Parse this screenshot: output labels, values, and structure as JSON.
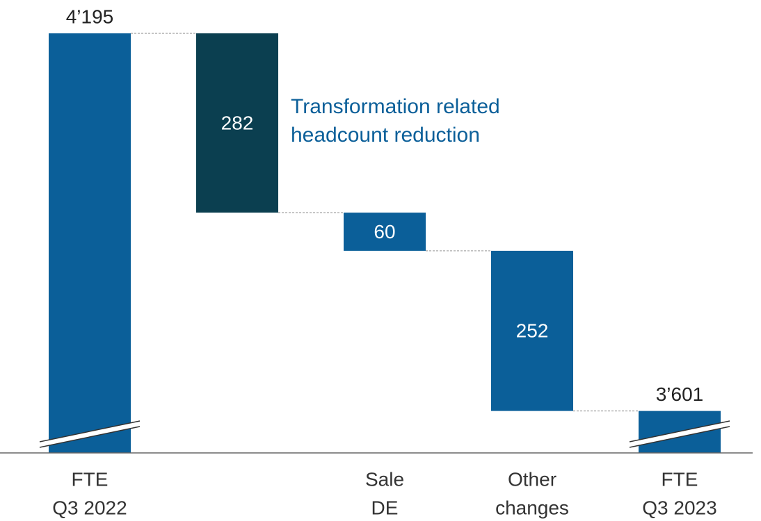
{
  "chart_data": {
    "type": "waterfall",
    "categories": [
      [
        "FTE",
        "Q3 2022"
      ],
      null,
      [
        "Sale",
        "DE"
      ],
      [
        "Other",
        "changes"
      ],
      [
        "FTE",
        "Q3 2023"
      ]
    ],
    "values": [
      4195,
      282,
      60,
      252,
      3601
    ],
    "value_labels": [
      "4’195",
      "282",
      "60",
      "252",
      "3’601"
    ],
    "measures": [
      "total",
      "decrease",
      "decrease",
      "decrease",
      "total"
    ],
    "colors": [
      "#0b5f99",
      "#0b3f50",
      "#0b5f99",
      "#0b5f99",
      "#0b5f99"
    ],
    "annotation": [
      "Transformation related",
      "headcount reduction"
    ],
    "annotation_color": "#0b5f99",
    "ylim": [
      3535,
      4195
    ],
    "broken_axis": true
  }
}
